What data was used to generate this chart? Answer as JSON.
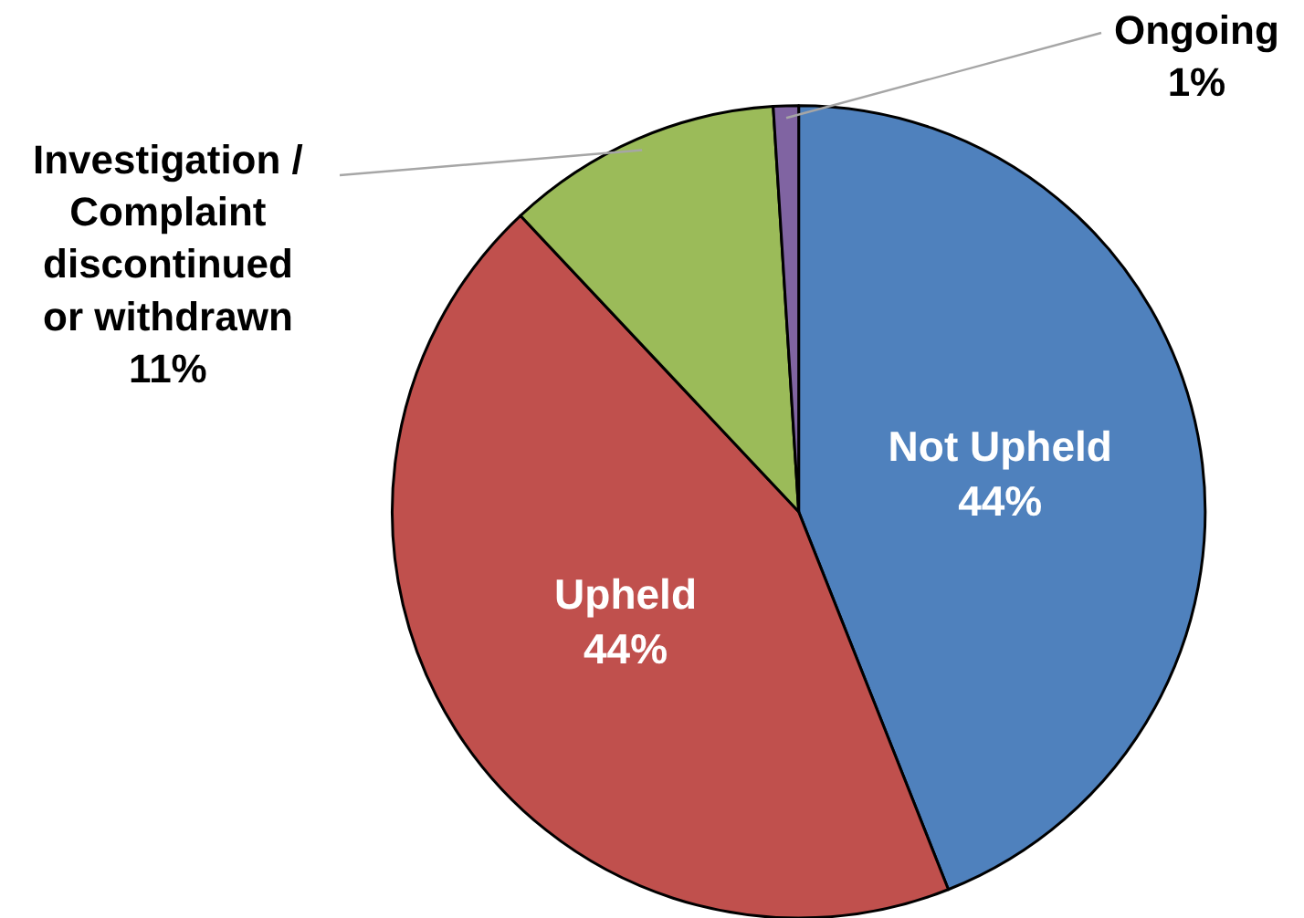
{
  "chart_data": {
    "type": "pie",
    "categories": [
      "Not Upheld",
      "Upheld",
      "Investigation / Complaint discontinued or withdrawn",
      "Ongoing"
    ],
    "values": [
      44,
      44,
      11,
      1
    ],
    "value_labels": [
      "44%",
      "44%",
      "11%",
      "1%"
    ],
    "colors": [
      "#4f81bd",
      "#c0504d",
      "#9bbb59",
      "#8064a2"
    ],
    "legend": false
  }
}
